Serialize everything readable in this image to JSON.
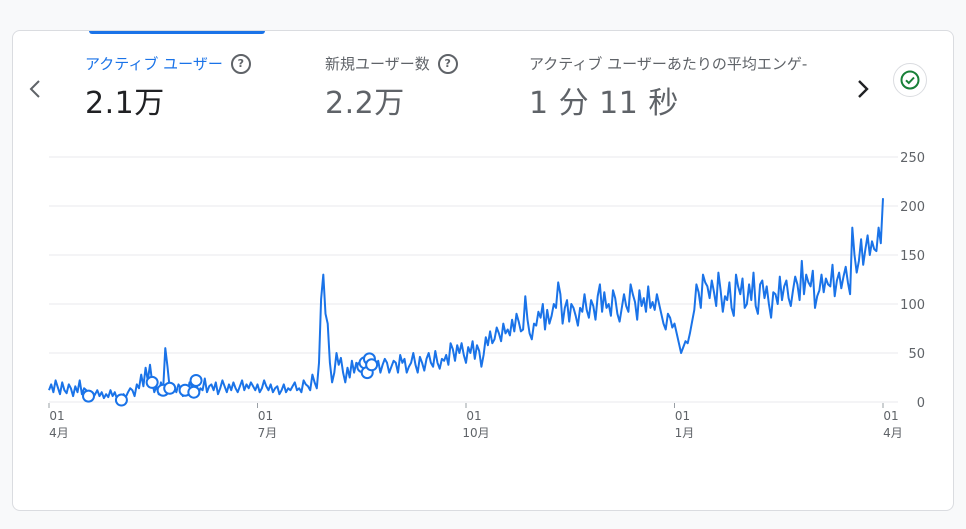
{
  "tabs": [
    {
      "label": "アクティブ ユーザー",
      "value": "2.1万",
      "active": true
    },
    {
      "label": "新規ユーザー数",
      "value": "2.2万",
      "active": false
    },
    {
      "label": "アクティブ ユーザーあたりの平均エンゲ-",
      "value": "1 分 11 秒",
      "active": false
    }
  ],
  "icons": {
    "help": "?",
    "prev": "chevron-left-icon",
    "next": "chevron-right-icon",
    "status": "check-circle-icon"
  },
  "colors": {
    "accent": "#1a73e8",
    "status": "#188038",
    "grid": "#e8eaed"
  },
  "chart_data": {
    "type": "line",
    "ylim": [
      0,
      250
    ],
    "yticks": [
      "250",
      "200",
      "150",
      "100",
      "50",
      "0"
    ],
    "xticks": [
      {
        "day": "01",
        "month": "4月"
      },
      {
        "day": "01",
        "month": "7月"
      },
      {
        "day": "01",
        "month": "10月"
      },
      {
        "day": "01",
        "month": "1月"
      },
      {
        "day": "01",
        "month": "4月"
      }
    ],
    "series": [
      {
        "values": [
          12,
          18,
          10,
          22,
          15,
          8,
          20,
          12,
          9,
          18,
          14,
          6,
          16,
          10,
          22,
          8,
          14,
          12,
          6,
          10,
          4,
          8,
          12,
          6,
          10,
          4,
          8,
          5,
          12,
          6,
          10,
          3,
          6,
          2,
          8,
          5,
          10,
          14,
          12,
          6,
          18,
          14,
          28,
          16,
          35,
          22,
          38,
          20,
          10,
          16,
          8,
          20,
          12,
          55,
          36,
          14,
          12,
          16,
          10,
          18,
          14,
          6,
          12,
          8,
          20,
          16,
          10,
          22,
          8,
          14,
          12,
          24,
          10,
          16,
          18,
          12,
          20,
          8,
          14,
          22,
          16,
          10,
          18,
          12,
          20,
          14,
          10,
          16,
          22,
          12,
          18,
          14,
          20,
          16,
          12,
          18,
          10,
          14,
          22,
          16,
          12,
          18,
          10,
          14,
          16,
          8,
          12,
          18,
          10,
          14,
          12,
          16,
          20,
          12,
          14,
          10,
          22,
          18,
          16,
          12,
          28,
          20,
          14,
          40,
          105,
          130,
          90,
          80,
          40,
          20,
          30,
          50,
          38,
          45,
          30,
          20,
          35,
          25,
          42,
          30,
          40,
          38,
          42,
          36,
          40,
          30,
          44,
          38,
          40,
          36,
          42,
          30,
          38,
          44,
          40,
          30,
          36,
          42,
          40,
          30,
          48,
          40,
          44,
          30,
          36,
          40,
          50,
          38,
          30,
          46,
          40,
          32,
          44,
          50,
          40,
          36,
          52,
          40,
          34,
          44,
          42,
          48,
          38,
          60,
          54,
          42,
          58,
          50,
          60,
          48,
          40,
          56,
          50,
          62,
          44,
          58,
          52,
          36,
          48,
          66,
          58,
          72,
          60,
          64,
          76,
          70,
          62,
          80,
          70,
          74,
          68,
          84,
          72,
          90,
          82,
          72,
          74,
          108,
          84,
          70,
          64,
          80,
          78,
          92,
          86,
          100,
          74,
          94,
          80,
          88,
          100,
          96,
          122,
          110,
          80,
          96,
          104,
          82,
          100,
          96,
          88,
          78,
          96,
          92,
          110,
          94,
          86,
          104,
          98,
          84,
          108,
          120,
          92,
          112,
          96,
          100,
          88,
          114,
          106,
          90,
          82,
          96,
          110,
          98,
          92,
          120,
          110,
          102,
          84,
          114,
          98,
          106,
          92,
          118,
          96,
          102,
          94,
          110,
          100,
          90,
          80,
          74,
          90,
          86,
          76,
          80,
          70,
          60,
          50,
          56,
          62,
          60,
          70,
          82,
          94,
          120,
          112,
          96,
          130,
          122,
          118,
          106,
          124,
          112,
          98,
          132,
          114,
          92,
          108,
          104,
          122,
          96,
          88,
          130,
          118,
          110,
          126,
          96,
          100,
          120,
          104,
          132,
          98,
          90,
          120,
          124,
          106,
          118,
          100,
          86,
          112,
          110,
          100,
          128,
          104,
          118,
          124,
          106,
          98,
          114,
          128,
          120,
          104,
          144,
          110,
          130,
          122,
          118,
          134,
          96,
          108,
          114,
          130,
          112,
          126,
          120,
          118,
          140,
          108,
          124,
          132,
          116,
          128,
          138,
          122,
          110,
          178,
          150,
          132,
          144,
          166,
          140,
          156,
          170,
          150,
          164,
          156,
          154,
          178,
          162,
          208
        ]
      }
    ],
    "markers": [
      18,
      33,
      47,
      52,
      55,
      62,
      66,
      67,
      143,
      144,
      145,
      146,
      147
    ]
  }
}
